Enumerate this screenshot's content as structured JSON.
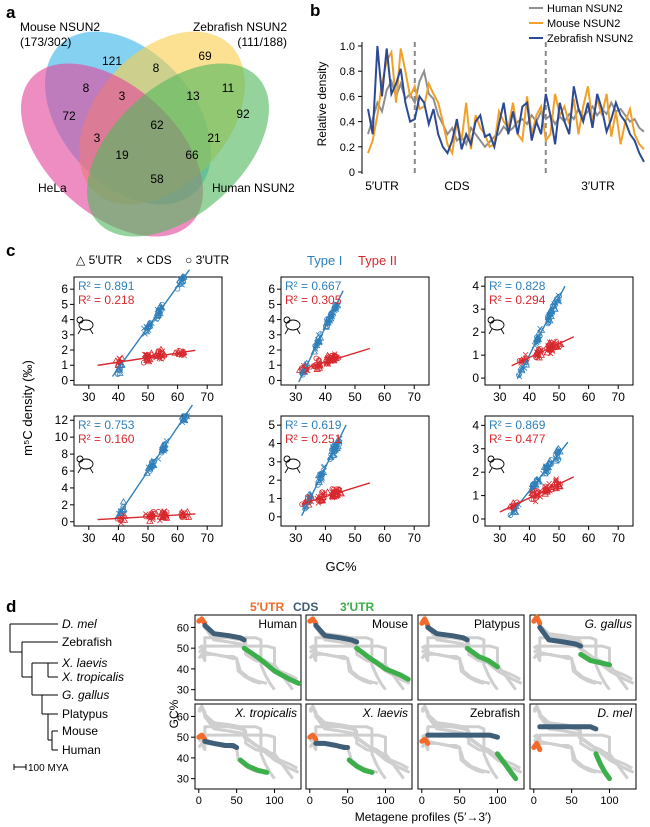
{
  "figure": {
    "panel_labels": [
      "a",
      "b",
      "c",
      "d"
    ]
  },
  "colors": {
    "mouse": "#39b4ea",
    "zebrafish": "#f8cf4e",
    "hela": "#e4479b",
    "human": "#52b85f",
    "type1": "#2f7fb9",
    "type2": "#d7282e",
    "utr5": "#f26b2b",
    "cds": "#3f5e78",
    "utr3": "#3cae4a",
    "bg_profile": "#cfcfcf",
    "line_human": "#8f8f8f",
    "line_mouse": "#f0a12a",
    "line_zebrafish": "#2c4a94"
  },
  "venn": {
    "labels": {
      "mouse": "Mouse NSUN2",
      "mouse_count": "(173/302)",
      "zebrafish": "Zebrafish NSUN2",
      "zebrafish_count": "(111/188)",
      "hela": "HeLa",
      "human": "Human NSUN2"
    },
    "regions": [
      {
        "id": "m_only",
        "value": "121"
      },
      {
        "id": "mz",
        "value": "8"
      },
      {
        "id": "z_only",
        "value": "69"
      },
      {
        "id": "mh",
        "value": "8"
      },
      {
        "id": "mzh",
        "value": "3"
      },
      {
        "id": "mz_hu",
        "value": "13"
      },
      {
        "id": "z_hu",
        "value": "11"
      },
      {
        "id": "h_only",
        "value": "72"
      },
      {
        "id": "all",
        "value": "62"
      },
      {
        "id": "hu_only",
        "value": "92"
      },
      {
        "id": "h_hu_m",
        "value": "3"
      },
      {
        "id": "z_hu_h",
        "value": "21"
      },
      {
        "id": "m_h_hu",
        "value": "19"
      },
      {
        "id": "z_hu_hh",
        "value": "66"
      },
      {
        "id": "h_hu",
        "value": "58"
      }
    ]
  },
  "chart_data": [
    {
      "id": "b",
      "type": "line",
      "title": "",
      "ylabel": "Relative density",
      "ylim": [
        0,
        1.0
      ],
      "yticks": [
        "0",
        "0.2",
        "0.4",
        "0.6",
        "0.8",
        "1.0"
      ],
      "x_region_labels": [
        "5′UTR",
        "CDS",
        "3′UTR"
      ],
      "boundaries": [
        10,
        38
      ],
      "series": [
        {
          "name": "Human NSUN2",
          "color": "#8f8f8f",
          "values": [
            0.3,
            0.42,
            0.55,
            0.48,
            0.65,
            0.72,
            0.6,
            0.7,
            0.58,
            0.62,
            0.55,
            0.72,
            0.8,
            0.62,
            0.58,
            0.45,
            0.38,
            0.3,
            0.35,
            0.25,
            0.28,
            0.22,
            0.35,
            0.3,
            0.25,
            0.2,
            0.24,
            0.28,
            0.3,
            0.36,
            0.32,
            0.35,
            0.4,
            0.42,
            0.38,
            0.45,
            0.4,
            0.48,
            0.42,
            0.45,
            0.38,
            0.44,
            0.4,
            0.46,
            0.42,
            0.5,
            0.44,
            0.48,
            0.52,
            0.45,
            0.5,
            0.46,
            0.55,
            0.48,
            0.5,
            0.45,
            0.4,
            0.42,
            0.35,
            0.32
          ]
        },
        {
          "name": "Mouse NSUN2",
          "color": "#f0a12a",
          "values": [
            0.15,
            0.25,
            0.45,
            0.7,
            0.88,
            0.95,
            0.55,
            0.98,
            0.8,
            0.6,
            0.68,
            0.5,
            0.52,
            0.7,
            0.62,
            0.55,
            0.4,
            0.22,
            0.15,
            0.4,
            0.25,
            0.55,
            0.18,
            0.45,
            0.35,
            0.3,
            0.2,
            0.22,
            0.48,
            0.4,
            0.35,
            0.55,
            0.3,
            0.25,
            0.6,
            0.3,
            0.45,
            0.52,
            0.25,
            0.3,
            0.62,
            0.45,
            0.52,
            0.38,
            0.58,
            0.3,
            0.52,
            0.68,
            0.4,
            0.58,
            0.45,
            0.62,
            0.28,
            0.48,
            0.22,
            0.4,
            0.5,
            0.3,
            0.22,
            0.18
          ]
        },
        {
          "name": "Zebrafish NSUN2",
          "color": "#2c4a94",
          "values": [
            0.5,
            0.3,
            1.0,
            0.6,
            0.98,
            0.62,
            0.7,
            0.82,
            0.55,
            0.4,
            0.42,
            0.6,
            0.55,
            0.38,
            0.5,
            0.3,
            0.2,
            0.15,
            0.25,
            0.42,
            0.18,
            0.3,
            0.22,
            0.4,
            0.45,
            0.28,
            0.3,
            0.2,
            0.38,
            0.55,
            0.3,
            0.48,
            0.3,
            0.52,
            0.55,
            0.25,
            0.4,
            0.3,
            0.62,
            0.45,
            0.22,
            0.55,
            0.4,
            0.3,
            0.68,
            0.5,
            0.4,
            0.55,
            0.35,
            0.62,
            0.5,
            0.32,
            0.42,
            0.55,
            0.45,
            0.4,
            0.3,
            0.25,
            0.15,
            0.08
          ]
        }
      ]
    },
    {
      "id": "c",
      "type": "scatter",
      "xlabel": "GC%",
      "ylabel": "m⁵C density (‰)",
      "legend": {
        "utr5": "△ 5′UTR",
        "cds": "× CDS",
        "utr3": "○ 3′UTR",
        "type1": "Type I",
        "type2": "Type II"
      },
      "xticks": [
        "30",
        "40",
        "50",
        "60",
        "70"
      ],
      "xlim": [
        25,
        75
      ],
      "panels": [
        {
          "id": "human",
          "ylim": [
            -0.3,
            6.8
          ],
          "yticks": [
            "0",
            "1",
            "2",
            "3",
            "4",
            "5",
            "6"
          ],
          "r2_type1": "R² = 0.891",
          "r2_type2": "R² = 0.218",
          "line1": {
            "slope": 0.27,
            "intercept": -10.0,
            "x0": 38,
            "x1": 64
          },
          "line2": {
            "slope": 0.03,
            "intercept": 0.0,
            "x0": 33,
            "x1": 66
          }
        },
        {
          "id": "mouse",
          "ylim": [
            -0.3,
            6.8
          ],
          "yticks": [
            "0",
            "1",
            "2",
            "3",
            "4",
            "5",
            "6"
          ],
          "r2_type1": "R² = 0.667",
          "r2_type2": "R² = 0.305",
          "line1": {
            "slope": 0.4,
            "intercept": -12.5,
            "x0": 31,
            "x1": 46
          },
          "line2": {
            "slope": 0.06,
            "intercept": -1.2,
            "x0": 33,
            "x1": 55
          }
        },
        {
          "id": "zebrafish",
          "ylim": [
            -0.3,
            4.4
          ],
          "yticks": [
            "0",
            "1",
            "2",
            "3",
            "4"
          ],
          "r2_type1": "R² = 0.828",
          "r2_type2": "R² = 0.294",
          "line1": {
            "slope": 0.25,
            "intercept": -9.0,
            "x0": 36,
            "x1": 52
          },
          "line2": {
            "slope": 0.06,
            "intercept": -1.5,
            "x0": 34,
            "x1": 55
          }
        },
        {
          "id": "fly",
          "ylim": [
            -0.5,
            12.5
          ],
          "yticks": [
            "0",
            "2",
            "4",
            "6",
            "8",
            "10",
            "12"
          ],
          "r2_type1": "R² = 0.753",
          "r2_type2": "R² = 0.160",
          "line1": {
            "slope": 0.52,
            "intercept": -20.0,
            "x0": 39,
            "x1": 65
          },
          "line2": {
            "slope": 0.02,
            "intercept": -0.4,
            "x0": 33,
            "x1": 66
          }
        },
        {
          "id": "xenopus",
          "ylim": [
            -0.5,
            5.5
          ],
          "yticks": [
            "0",
            "1",
            "2",
            "3",
            "4",
            "5"
          ],
          "r2_type1": "R² = 0.619",
          "r2_type2": "R² = 0.251",
          "line1": {
            "slope": 0.33,
            "intercept": -10.5,
            "x0": 32,
            "x1": 47
          },
          "line2": {
            "slope": 0.05,
            "intercept": -0.9,
            "x0": 32,
            "x1": 55
          }
        },
        {
          "id": "drosophila",
          "ylim": [
            -0.3,
            4.4
          ],
          "yticks": [
            "0",
            "1",
            "2",
            "3",
            "4"
          ],
          "r2_type1": "R² = 0.869",
          "r2_type2": "R² = 0.477",
          "line1": {
            "slope": 0.16,
            "intercept": -5.2,
            "x0": 33,
            "x1": 53
          },
          "line2": {
            "slope": 0.06,
            "intercept": -1.5,
            "x0": 30,
            "x1": 55
          }
        }
      ]
    },
    {
      "id": "d",
      "type": "line",
      "xlabel": "Metagene profiles (5′→3′)",
      "ylabel": "GC%",
      "legend": {
        "utr5": "5′UTR",
        "cds": "CDS",
        "utr3": "3′UTR"
      },
      "xticks": [
        "0",
        "50",
        "100"
      ],
      "yticks": [
        "30",
        "40",
        "50",
        "60"
      ],
      "xlim": [
        -5,
        135
      ],
      "ylim": [
        25,
        66
      ],
      "panels": [
        {
          "id": "human",
          "title": "Human",
          "italic": false,
          "utr5": [
            [
              0,
              63
            ],
            [
              4,
              64
            ],
            [
              8,
              62
            ]
          ],
          "cds": [
            [
              8,
              61
            ],
            [
              20,
              57
            ],
            [
              40,
              56
            ],
            [
              55,
              55
            ],
            [
              60,
              54
            ]
          ],
          "utr3": [
            [
              60,
              50
            ],
            [
              80,
              45
            ],
            [
              100,
              39
            ],
            [
              120,
              35
            ],
            [
              132,
              33
            ]
          ]
        },
        {
          "id": "mouse",
          "title": "Mouse",
          "italic": false,
          "utr5": [
            [
              0,
              63
            ],
            [
              4,
              64
            ],
            [
              8,
              62
            ]
          ],
          "cds": [
            [
              8,
              61
            ],
            [
              20,
              56
            ],
            [
              40,
              55
            ],
            [
              55,
              54
            ],
            [
              62,
              53
            ]
          ],
          "utr3": [
            [
              62,
              50
            ],
            [
              80,
              45
            ],
            [
              100,
              40
            ],
            [
              120,
              37
            ],
            [
              130,
              35
            ]
          ]
        },
        {
          "id": "platypus",
          "title": "Platypus",
          "italic": false,
          "utr5": [
            [
              0,
              62
            ],
            [
              4,
              64
            ],
            [
              8,
              61
            ]
          ],
          "cds": [
            [
              8,
              60
            ],
            [
              20,
              57
            ],
            [
              40,
              56
            ],
            [
              55,
              55
            ],
            [
              60,
              54
            ]
          ],
          "utr3": [
            [
              60,
              50
            ],
            [
              75,
              46
            ],
            [
              88,
              44
            ],
            [
              100,
              41
            ]
          ]
        },
        {
          "id": "ggallus",
          "title": "G. gallus",
          "italic": true,
          "utr5": [
            [
              0,
              63
            ],
            [
              4,
              65
            ],
            [
              8,
              62
            ]
          ],
          "cds": [
            [
              8,
              60
            ],
            [
              20,
              54
            ],
            [
              40,
              53
            ],
            [
              55,
              52
            ],
            [
              62,
              51
            ]
          ],
          "utr3": [
            [
              62,
              47
            ],
            [
              75,
              44
            ],
            [
              88,
              43
            ],
            [
              100,
              42
            ]
          ]
        },
        {
          "id": "xtropicalis",
          "title": "X. tropicalis",
          "italic": true,
          "utr5": [
            [
              0,
              50
            ],
            [
              4,
              51
            ],
            [
              8,
              49
            ]
          ],
          "cds": [
            [
              8,
              48
            ],
            [
              20,
              47
            ],
            [
              35,
              46
            ],
            [
              45,
              46
            ],
            [
              50,
              45
            ]
          ],
          "utr3": [
            [
              55,
              39
            ],
            [
              65,
              36
            ],
            [
              78,
              34
            ],
            [
              90,
              33
            ]
          ]
        },
        {
          "id": "xlaevis",
          "title": "X. laevis",
          "italic": true,
          "utr5": [
            [
              0,
              50
            ],
            [
              4,
              51
            ],
            [
              8,
              49
            ]
          ],
          "cds": [
            [
              8,
              47
            ],
            [
              20,
              47
            ],
            [
              35,
              46
            ],
            [
              45,
              45
            ],
            [
              50,
              45
            ]
          ],
          "utr3": [
            [
              52,
              39
            ],
            [
              62,
              36
            ],
            [
              72,
              34
            ],
            [
              82,
              33
            ]
          ]
        },
        {
          "id": "zebrafish",
          "title": "Zebrafish",
          "italic": false,
          "utr5": [
            [
              0,
              48
            ],
            [
              4,
              49
            ],
            [
              8,
              47
            ]
          ],
          "cds": [
            [
              8,
              51
            ],
            [
              30,
              51
            ],
            [
              60,
              51
            ],
            [
              90,
              51
            ],
            [
              100,
              50
            ]
          ],
          "utr3": [
            [
              100,
              42
            ],
            [
              110,
              37
            ],
            [
              118,
              33
            ],
            [
              124,
              30
            ]
          ]
        },
        {
          "id": "dmel",
          "title": "D. mel",
          "italic": true,
          "utr5": [
            [
              0,
              45
            ],
            [
              4,
              47
            ],
            [
              8,
              44
            ]
          ],
          "cds": [
            [
              8,
              55
            ],
            [
              30,
              55
            ],
            [
              55,
              55
            ],
            [
              75,
              55
            ],
            [
              82,
              54
            ]
          ],
          "utr3": [
            [
              82,
              42
            ],
            [
              88,
              37
            ],
            [
              94,
              33
            ],
            [
              100,
              30
            ]
          ]
        }
      ]
    }
  ],
  "tree": {
    "species": [
      {
        "label": "D. mel",
        "italic": true
      },
      {
        "label": "Zebrafish",
        "italic": false
      },
      {
        "label": "X. laevis",
        "italic": true
      },
      {
        "label": "X. tropicalis",
        "italic": true
      },
      {
        "label": "G. gallus",
        "italic": true
      },
      {
        "label": "Platypus",
        "italic": false
      },
      {
        "label": "Mouse",
        "italic": false
      },
      {
        "label": "Human",
        "italic": false
      }
    ],
    "scale_label": "100 MYA"
  }
}
